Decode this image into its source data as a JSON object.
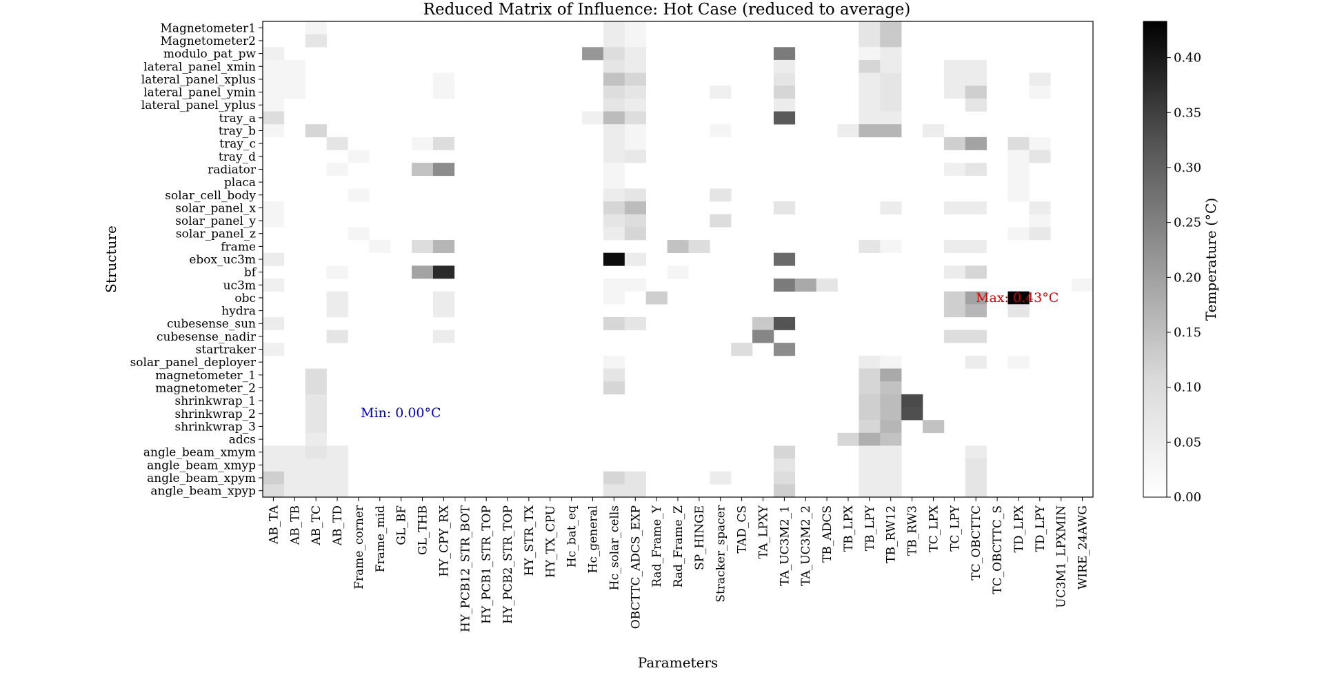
{
  "chart_data": {
    "type": "heatmap",
    "title": "Reduced Matrix of Influence: Hot Case (reduced to average)",
    "xlabel": "Parameters",
    "ylabel": "Structure",
    "colorbar": {
      "label": "Temperature (°C)",
      "ticks": [
        "0.00",
        "0.05",
        "0.10",
        "0.15",
        "0.20",
        "0.25",
        "0.30",
        "0.35",
        "0.40"
      ],
      "range": [
        0,
        0.433
      ],
      "colormap": "Greys"
    },
    "columns": [
      "AB_TA",
      "AB_TB",
      "AB_TC",
      "AB_TD",
      "Frame_corner",
      "Frame_mid",
      "GL_BF",
      "GL_THB",
      "HY_CPY_RX",
      "HY_PCB12_STR_BOT",
      "HY_PCB1_STR_TOP",
      "HY_PCB2_STR_TOP",
      "HY_STR_TX",
      "HY_TX_CPU",
      "Hc_bat_eq",
      "Hc_general",
      "Hc_solar_cells",
      "OBCTTC_ADCS_EXP",
      "Rad_Frame_Y",
      "Rad_Frame_Z",
      "SP_HINGE",
      "Stracker_spacer",
      "TAD_CS",
      "TA_LPXY",
      "TA_UC3M2_1",
      "TA_UC3M2_2",
      "TB_ADCS",
      "TB_LPX",
      "TB_LPY",
      "TB_RW12",
      "TB_RW3",
      "TC_LPX",
      "TC_LPY",
      "TC_OBCTTC",
      "TC_OBCTTC_S",
      "TD_LPX",
      "TD_LPY",
      "UC3M1_LPXMIN",
      "WIRE_24AWG"
    ],
    "rows": [
      "Magnetometer1",
      "Magnetometer2",
      "modulo_pat_pw",
      "lateral_panel_xmin",
      "lateral_panel_xplus",
      "lateral_panel_ymin",
      "lateral_panel_yplus",
      "tray_a",
      "tray_b",
      "tray_c",
      "tray_d",
      "radiator",
      "placa",
      "solar_cell_body",
      "solar_panel_x",
      "solar_panel_y",
      "solar_panel_z",
      "frame",
      "ebox_uc3m",
      "bf",
      "uc3m",
      "obc",
      "hydra",
      "cubesense_sun",
      "cubesense_nadir",
      "startraker",
      "solar_panel_deployer",
      "magnetometer_1",
      "magnetometer_2",
      "shrinkwrap_1",
      "shrinkwrap_2",
      "shrinkwrap_3",
      "adcs",
      "angle_beam_xmym",
      "angle_beam_xmyp",
      "angle_beam_xpym",
      "angle_beam_xpyp"
    ],
    "cells": [
      [
        0,
        2,
        0.01
      ],
      [
        0,
        16,
        0.02
      ],
      [
        0,
        17,
        0.01
      ],
      [
        0,
        28,
        0.03
      ],
      [
        0,
        29,
        0.07
      ],
      [
        1,
        2,
        0.03
      ],
      [
        1,
        16,
        0.02
      ],
      [
        1,
        17,
        0.01
      ],
      [
        1,
        28,
        0.03
      ],
      [
        1,
        29,
        0.07
      ],
      [
        2,
        0,
        0.015
      ],
      [
        2,
        15,
        0.15
      ],
      [
        2,
        16,
        0.04
      ],
      [
        2,
        17,
        0.02
      ],
      [
        2,
        24,
        0.2
      ],
      [
        2,
        28,
        0.01
      ],
      [
        2,
        29,
        0.02
      ],
      [
        3,
        0,
        0.01
      ],
      [
        3,
        1,
        0.01
      ],
      [
        3,
        16,
        0.03
      ],
      [
        3,
        17,
        0.02
      ],
      [
        3,
        24,
        0.02
      ],
      [
        3,
        28,
        0.05
      ],
      [
        3,
        29,
        0.02
      ],
      [
        3,
        32,
        0.02
      ],
      [
        3,
        33,
        0.02
      ],
      [
        4,
        0,
        0.01
      ],
      [
        4,
        1,
        0.01
      ],
      [
        4,
        8,
        0.01
      ],
      [
        4,
        16,
        0.08
      ],
      [
        4,
        17,
        0.05
      ],
      [
        4,
        24,
        0.03
      ],
      [
        4,
        28,
        0.02
      ],
      [
        4,
        29,
        0.03
      ],
      [
        4,
        32,
        0.02
      ],
      [
        4,
        33,
        0.02
      ],
      [
        4,
        36,
        0.02
      ],
      [
        5,
        0,
        0.01
      ],
      [
        5,
        1,
        0.01
      ],
      [
        5,
        8,
        0.01
      ],
      [
        5,
        16,
        0.04
      ],
      [
        5,
        17,
        0.03
      ],
      [
        5,
        21,
        0.015
      ],
      [
        5,
        24,
        0.05
      ],
      [
        5,
        28,
        0.02
      ],
      [
        5,
        29,
        0.03
      ],
      [
        5,
        32,
        0.02
      ],
      [
        5,
        33,
        0.06
      ],
      [
        5,
        36,
        0.01
      ],
      [
        6,
        0,
        0.01
      ],
      [
        6,
        16,
        0.03
      ],
      [
        6,
        17,
        0.02
      ],
      [
        6,
        24,
        0.02
      ],
      [
        6,
        28,
        0.02
      ],
      [
        6,
        29,
        0.03
      ],
      [
        6,
        33,
        0.03
      ],
      [
        7,
        0,
        0.04
      ],
      [
        7,
        15,
        0.015
      ],
      [
        7,
        16,
        0.09
      ],
      [
        7,
        17,
        0.04
      ],
      [
        7,
        24,
        0.26
      ],
      [
        7,
        28,
        0.02
      ],
      [
        7,
        29,
        0.02
      ],
      [
        8,
        0,
        0.01
      ],
      [
        8,
        2,
        0.05
      ],
      [
        8,
        16,
        0.02
      ],
      [
        8,
        17,
        0.01
      ],
      [
        8,
        21,
        0.01
      ],
      [
        8,
        27,
        0.02
      ],
      [
        8,
        28,
        0.1
      ],
      [
        8,
        29,
        0.1
      ],
      [
        8,
        31,
        0.02
      ],
      [
        9,
        3,
        0.03
      ],
      [
        9,
        7,
        0.01
      ],
      [
        9,
        8,
        0.04
      ],
      [
        9,
        16,
        0.02
      ],
      [
        9,
        17,
        0.01
      ],
      [
        9,
        32,
        0.06
      ],
      [
        9,
        33,
        0.13
      ],
      [
        9,
        35,
        0.04
      ],
      [
        9,
        36,
        0.01
      ],
      [
        10,
        4,
        0.01
      ],
      [
        10,
        16,
        0.02
      ],
      [
        10,
        17,
        0.025
      ],
      [
        10,
        35,
        0.01
      ],
      [
        10,
        36,
        0.03
      ],
      [
        11,
        3,
        0.01
      ],
      [
        11,
        7,
        0.08
      ],
      [
        11,
        8,
        0.17
      ],
      [
        11,
        16,
        0.01
      ],
      [
        11,
        32,
        0.015
      ],
      [
        11,
        33,
        0.03
      ],
      [
        11,
        35,
        0.01
      ],
      [
        12,
        16,
        0.01
      ],
      [
        12,
        35,
        0.01
      ],
      [
        13,
        4,
        0.01
      ],
      [
        13,
        16,
        0.02
      ],
      [
        13,
        17,
        0.03
      ],
      [
        13,
        21,
        0.03
      ],
      [
        13,
        35,
        0.01
      ],
      [
        14,
        0,
        0.01
      ],
      [
        14,
        16,
        0.05
      ],
      [
        14,
        17,
        0.09
      ],
      [
        14,
        24,
        0.03
      ],
      [
        14,
        29,
        0.02
      ],
      [
        14,
        32,
        0.02
      ],
      [
        14,
        33,
        0.02
      ],
      [
        14,
        36,
        0.02
      ],
      [
        15,
        0,
        0.01
      ],
      [
        15,
        16,
        0.03
      ],
      [
        15,
        17,
        0.04
      ],
      [
        15,
        21,
        0.04
      ],
      [
        15,
        36,
        0.01
      ],
      [
        16,
        4,
        0.01
      ],
      [
        16,
        16,
        0.02
      ],
      [
        16,
        17,
        0.05
      ],
      [
        16,
        35,
        0.01
      ],
      [
        16,
        36,
        0.025
      ],
      [
        17,
        5,
        0.01
      ],
      [
        17,
        7,
        0.04
      ],
      [
        17,
        8,
        0.1
      ],
      [
        17,
        19,
        0.08
      ],
      [
        17,
        20,
        0.04
      ],
      [
        17,
        28,
        0.03
      ],
      [
        17,
        29,
        0.01
      ],
      [
        17,
        32,
        0.02
      ],
      [
        17,
        33,
        0.02
      ],
      [
        18,
        0,
        0.02
      ],
      [
        18,
        16,
        0.41
      ],
      [
        18,
        17,
        0.02
      ],
      [
        18,
        24,
        0.23
      ],
      [
        19,
        3,
        0.01
      ],
      [
        19,
        7,
        0.13
      ],
      [
        19,
        8,
        0.35
      ],
      [
        19,
        19,
        0.01
      ],
      [
        19,
        32,
        0.02
      ],
      [
        19,
        33,
        0.05
      ],
      [
        20,
        0,
        0.015
      ],
      [
        20,
        16,
        0.01
      ],
      [
        20,
        17,
        0.01
      ],
      [
        20,
        24,
        0.2
      ],
      [
        20,
        25,
        0.12
      ],
      [
        20,
        26,
        0.03
      ],
      [
        20,
        38,
        0.01
      ],
      [
        21,
        3,
        0.02
      ],
      [
        21,
        8,
        0.02
      ],
      [
        21,
        16,
        0.01
      ],
      [
        21,
        18,
        0.06
      ],
      [
        21,
        32,
        0.06
      ],
      [
        21,
        33,
        0.13
      ],
      [
        21,
        35,
        0.433
      ],
      [
        22,
        3,
        0.02
      ],
      [
        22,
        8,
        0.02
      ],
      [
        22,
        32,
        0.06
      ],
      [
        22,
        33,
        0.1
      ],
      [
        22,
        35,
        0.03
      ],
      [
        23,
        0,
        0.02
      ],
      [
        23,
        16,
        0.05
      ],
      [
        23,
        17,
        0.03
      ],
      [
        23,
        23,
        0.07
      ],
      [
        23,
        24,
        0.27
      ],
      [
        24,
        3,
        0.03
      ],
      [
        24,
        8,
        0.02
      ],
      [
        24,
        23,
        0.18
      ],
      [
        24,
        32,
        0.04
      ],
      [
        24,
        33,
        0.04
      ],
      [
        25,
        0,
        0.015
      ],
      [
        25,
        22,
        0.04
      ],
      [
        25,
        24,
        0.17
      ],
      [
        26,
        16,
        0.01
      ],
      [
        26,
        28,
        0.02
      ],
      [
        26,
        29,
        0.01
      ],
      [
        26,
        33,
        0.02
      ],
      [
        26,
        35,
        0.01
      ],
      [
        27,
        2,
        0.04
      ],
      [
        27,
        16,
        0.03
      ],
      [
        27,
        28,
        0.05
      ],
      [
        27,
        29,
        0.12
      ],
      [
        28,
        2,
        0.04
      ],
      [
        28,
        16,
        0.05
      ],
      [
        28,
        28,
        0.05
      ],
      [
        28,
        29,
        0.08
      ],
      [
        29,
        2,
        0.03
      ],
      [
        29,
        28,
        0.06
      ],
      [
        29,
        29,
        0.09
      ],
      [
        29,
        30,
        0.29
      ],
      [
        30,
        2,
        0.03
      ],
      [
        30,
        28,
        0.06
      ],
      [
        30,
        29,
        0.09
      ],
      [
        30,
        30,
        0.28
      ],
      [
        31,
        2,
        0.03
      ],
      [
        31,
        28,
        0.05
      ],
      [
        31,
        29,
        0.1
      ],
      [
        31,
        31,
        0.08
      ],
      [
        32,
        2,
        0.02
      ],
      [
        32,
        27,
        0.05
      ],
      [
        32,
        28,
        0.11
      ],
      [
        32,
        29,
        0.08
      ],
      [
        33,
        0,
        0.02
      ],
      [
        33,
        1,
        0.02
      ],
      [
        33,
        2,
        0.03
      ],
      [
        33,
        3,
        0.02
      ],
      [
        33,
        24,
        0.05
      ],
      [
        33,
        28,
        0.02
      ],
      [
        33,
        29,
        0.02
      ],
      [
        33,
        33,
        0.02
      ],
      [
        34,
        0,
        0.02
      ],
      [
        34,
        1,
        0.02
      ],
      [
        34,
        2,
        0.02
      ],
      [
        34,
        3,
        0.02
      ],
      [
        34,
        24,
        0.03
      ],
      [
        34,
        28,
        0.02
      ],
      [
        34,
        29,
        0.02
      ],
      [
        34,
        33,
        0.03
      ],
      [
        35,
        0,
        0.06
      ],
      [
        35,
        1,
        0.02
      ],
      [
        35,
        2,
        0.02
      ],
      [
        35,
        3,
        0.02
      ],
      [
        35,
        16,
        0.05
      ],
      [
        35,
        17,
        0.03
      ],
      [
        35,
        21,
        0.02
      ],
      [
        35,
        24,
        0.04
      ],
      [
        35,
        28,
        0.02
      ],
      [
        35,
        29,
        0.02
      ],
      [
        35,
        33,
        0.03
      ],
      [
        36,
        0,
        0.04
      ],
      [
        36,
        1,
        0.02
      ],
      [
        36,
        2,
        0.02
      ],
      [
        36,
        3,
        0.02
      ],
      [
        36,
        16,
        0.03
      ],
      [
        36,
        17,
        0.03
      ],
      [
        36,
        24,
        0.06
      ],
      [
        36,
        28,
        0.02
      ],
      [
        36,
        29,
        0.02
      ],
      [
        36,
        33,
        0.03
      ]
    ],
    "annotations": {
      "max_text": "Max: 0.43°C",
      "min_text": "Min: 0.00°C",
      "max_color": "#e00000",
      "min_color": "#0000cc"
    }
  }
}
